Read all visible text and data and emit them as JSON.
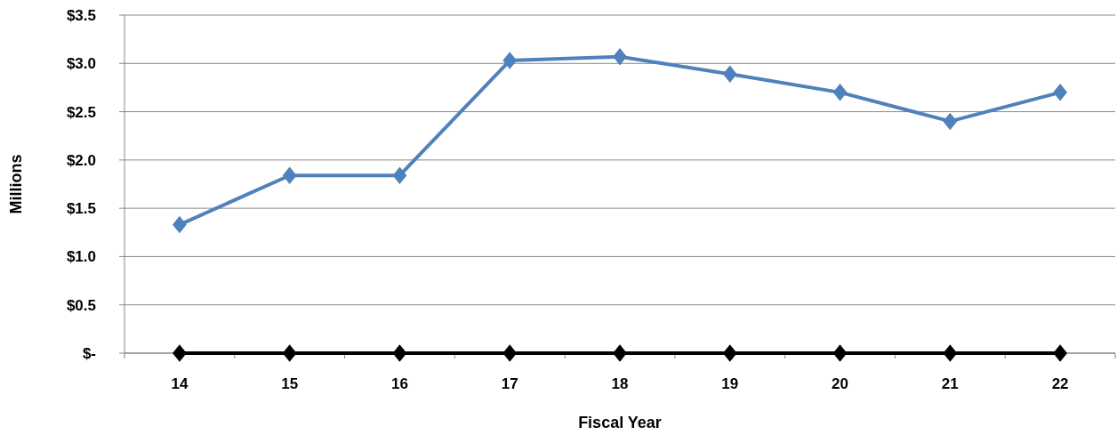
{
  "chart_data": {
    "type": "line",
    "xlabel": "Fiscal Year",
    "ylabel": "Millions",
    "categories": [
      "14",
      "15",
      "16",
      "17",
      "18",
      "19",
      "20",
      "21",
      "22"
    ],
    "series": [
      {
        "color": "#4f81bd",
        "values": [
          1.33,
          1.84,
          1.84,
          3.03,
          3.07,
          2.89,
          2.7,
          2.4,
          2.7
        ]
      },
      {
        "color": "#000000",
        "values": [
          0,
          0,
          0,
          0,
          0,
          0,
          0,
          0,
          0
        ]
      }
    ],
    "ylim": [
      0,
      3.5
    ],
    "yticks": [
      {
        "value": 0,
        "label": "$-"
      },
      {
        "value": 0.5,
        "label": "$0.5"
      },
      {
        "value": 1,
        "label": "$1.0"
      },
      {
        "value": 1.5,
        "label": "$1.5"
      },
      {
        "value": 2,
        "label": "$2.0"
      },
      {
        "value": 2.5,
        "label": "$2.5"
      },
      {
        "value": 3,
        "label": "$3.0"
      },
      {
        "value": 3.5,
        "label": "$3.5"
      }
    ],
    "grid": "y",
    "marker": "diamond",
    "line_style": "solid"
  }
}
